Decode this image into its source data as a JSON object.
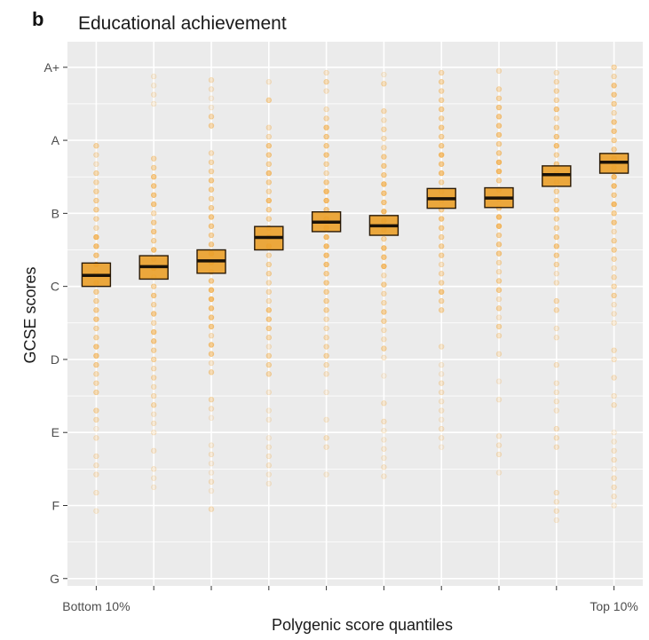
{
  "panel_letter": "b",
  "chart_data": {
    "type": "box",
    "title": "Educational achievement",
    "xlabel": "Polygenic score quantiles",
    "ylabel": "GCSE scores",
    "categories": [
      "Bottom 10%",
      "",
      "",
      "",
      "",
      "",
      "",
      "",
      "",
      "Top 10%"
    ],
    "y_ticks": [
      {
        "label": "G",
        "value": 1
      },
      {
        "label": "F",
        "value": 2
      },
      {
        "label": "E",
        "value": 3
      },
      {
        "label": "D",
        "value": 4
      },
      {
        "label": "C",
        "value": 5
      },
      {
        "label": "B",
        "value": 6
      },
      {
        "label": "A",
        "value": 7
      },
      {
        "label": "A+",
        "value": 8
      }
    ],
    "ylim": [
      0.9,
      8.35
    ],
    "series": [
      {
        "values": [
          {
            "low": 5.0,
            "mid": 5.15,
            "high": 5.32
          },
          {
            "low": 5.1,
            "mid": 5.27,
            "high": 5.42
          },
          {
            "low": 5.18,
            "mid": 5.35,
            "high": 5.5
          },
          {
            "low": 5.5,
            "mid": 5.67,
            "high": 5.82
          },
          {
            "low": 5.75,
            "mid": 5.88,
            "high": 6.02
          },
          {
            "low": 5.7,
            "mid": 5.83,
            "high": 5.97
          },
          {
            "low": 6.07,
            "mid": 6.2,
            "high": 6.34
          },
          {
            "low": 6.08,
            "mid": 6.21,
            "high": 6.35
          },
          {
            "low": 6.37,
            "mid": 6.53,
            "high": 6.65
          },
          {
            "low": 6.55,
            "mid": 6.7,
            "high": 6.82
          }
        ]
      }
    ],
    "points": {
      "range_low": [
        1.8,
        2.25,
        1.95,
        2.3,
        2.3,
        2.4,
        2.8,
        2.45,
        1.8,
        2.0
      ],
      "range_high": [
        7.0,
        7.95,
        7.85,
        8.0,
        8.0,
        7.95,
        8.0,
        8.0,
        8.0,
        8.0
      ]
    },
    "grid": true,
    "legend": "none",
    "colors": {
      "panel_background": "#ebebeb",
      "grid": "#ffffff",
      "point": "#f2a73a",
      "box_fill": "#eaa12c",
      "box_border": "#2a1a06",
      "median_line": "#1a1208"
    }
  }
}
